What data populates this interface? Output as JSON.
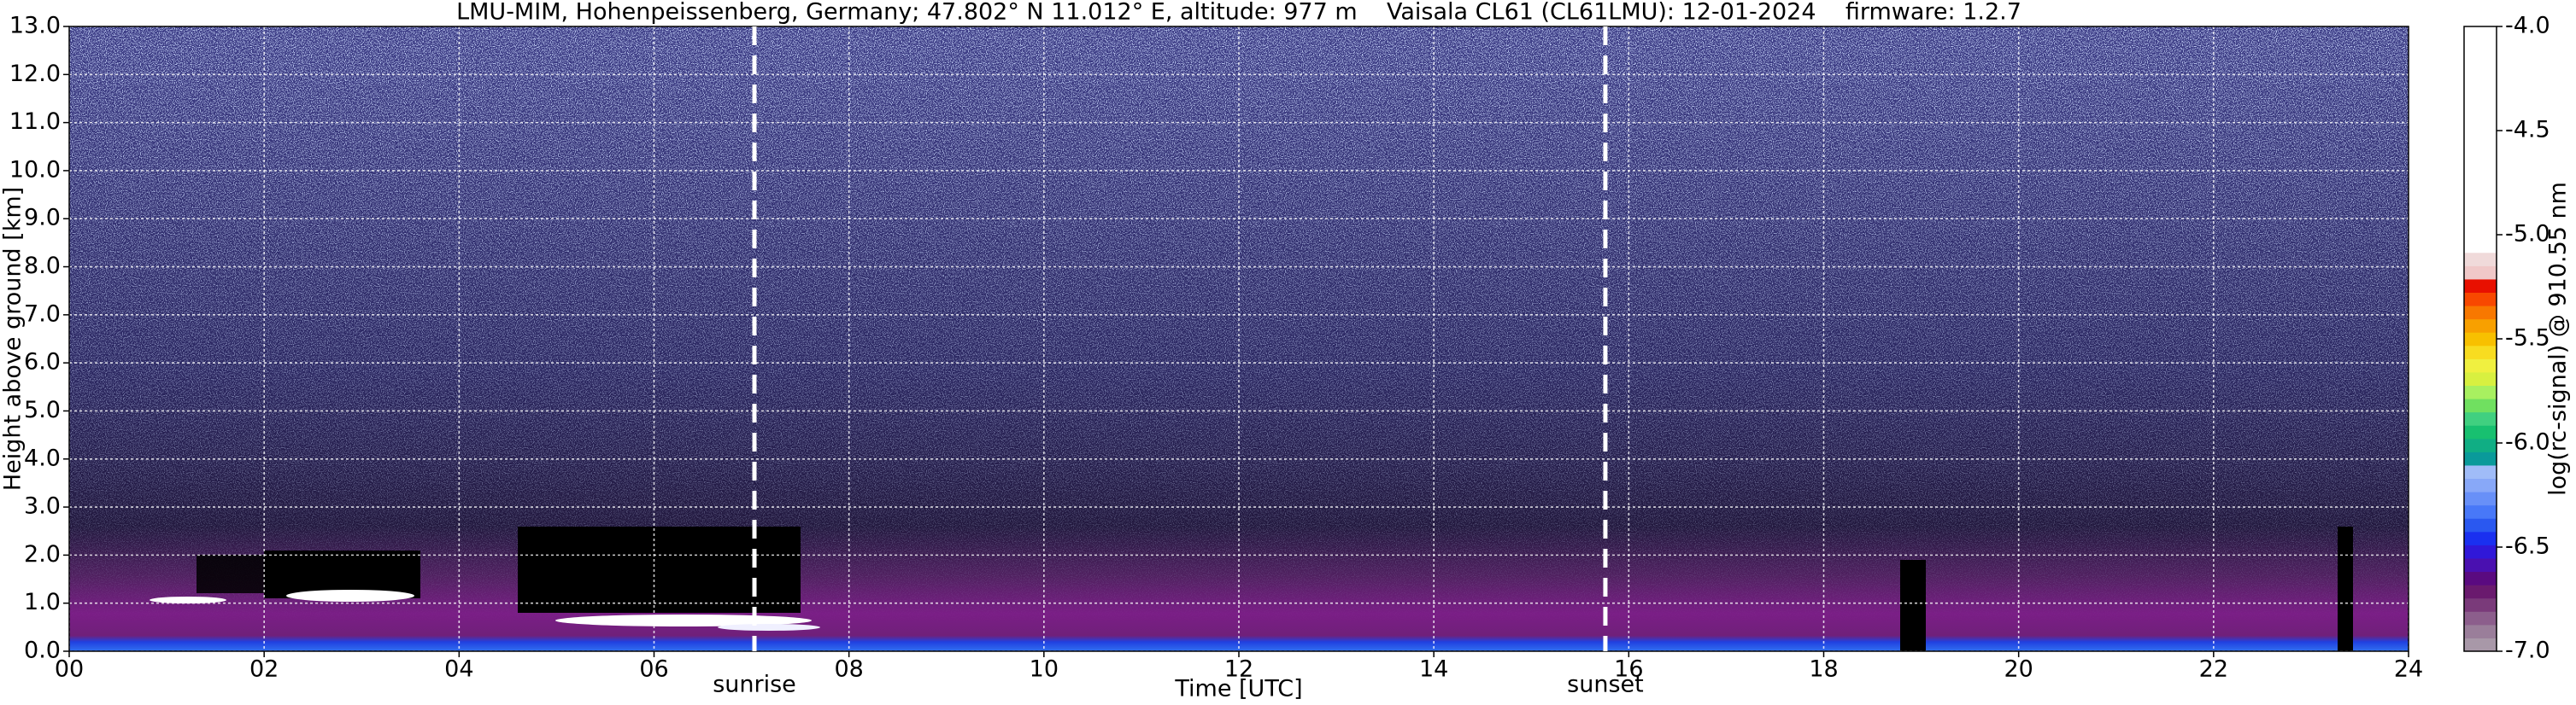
{
  "chart_data": {
    "type": "heatmap",
    "title": "LMU-MIM, Hohenpeissenberg, Germany; 47.802° N 11.012° E, altitude: 977 m    Vaisala CL61 (CL61LMU): 12-01-2024    firmware: 1.2.7",
    "x_label": "Time [UTC]",
    "y_label": "Height above ground [km]",
    "xlim": [
      0,
      24
    ],
    "xticks": [
      {
        "value": 0,
        "label": "00"
      },
      {
        "value": 2,
        "label": "02"
      },
      {
        "value": 4,
        "label": "04"
      },
      {
        "value": 6,
        "label": "06"
      },
      {
        "value": 8,
        "label": "08"
      },
      {
        "value": 10,
        "label": "10"
      },
      {
        "value": 12,
        "label": "12"
      },
      {
        "value": 14,
        "label": "14"
      },
      {
        "value": 16,
        "label": "16"
      },
      {
        "value": 18,
        "label": "18"
      },
      {
        "value": 20,
        "label": "20"
      },
      {
        "value": 22,
        "label": "22"
      },
      {
        "value": 24,
        "label": "24"
      }
    ],
    "ylim": [
      0,
      13
    ],
    "yticks": [
      {
        "value": 0,
        "label": "0.0"
      },
      {
        "value": 1,
        "label": "1.0"
      },
      {
        "value": 2,
        "label": "2.0"
      },
      {
        "value": 3,
        "label": "3.0"
      },
      {
        "value": 4,
        "label": "4.0"
      },
      {
        "value": 5,
        "label": "5.0"
      },
      {
        "value": 6,
        "label": "6.0"
      },
      {
        "value": 7,
        "label": "7.0"
      },
      {
        "value": 8,
        "label": "8.0"
      },
      {
        "value": 9,
        "label": "9.0"
      },
      {
        "value": 10,
        "label": "10.0"
      },
      {
        "value": 11,
        "label": "11.0"
      },
      {
        "value": 12,
        "label": "12.0"
      },
      {
        "value": 13,
        "label": "13.0"
      }
    ],
    "grid": true,
    "annotations": [
      {
        "text": "sunrise",
        "x": 7.03
      },
      {
        "text": "sunset",
        "x": 15.76
      }
    ],
    "colorbar": {
      "label": "log(rc-signal) @ 910.55 nm",
      "lim": [
        -7,
        -4
      ],
      "ticks": [
        {
          "value": -7,
          "label": "-7.0"
        },
        {
          "value": -6.5,
          "label": "-6.5"
        },
        {
          "value": -6,
          "label": "-6.0"
        },
        {
          "value": -5.5,
          "label": "-5.5"
        },
        {
          "value": -5,
          "label": "-5.0"
        },
        {
          "value": -4.5,
          "label": "-4.5"
        },
        {
          "value": -4,
          "label": "-4.0"
        }
      ],
      "colors": [
        "#a898a8",
        "#9a7e9a",
        "#8c5e8c",
        "#7a3a7a",
        "#6a1a6e",
        "#5a0a80",
        "#4a10b0",
        "#3018d8",
        "#1a30f0",
        "#2a58f0",
        "#4878f8",
        "#6890f8",
        "#88a8f8",
        "#a0bcf8",
        "#0a9a9a",
        "#10ae84",
        "#18c070",
        "#40d080",
        "#70e060",
        "#a8f060",
        "#d8f040",
        "#f0f040",
        "#f8dc20",
        "#f8c000",
        "#f8a000",
        "#f87800",
        "#f84800",
        "#e81000",
        "#f0c8c8",
        "#f0dada",
        "#ffffff",
        "#ffffff",
        "#ffffff",
        "#ffffff",
        "#ffffff",
        "#ffffff",
        "#ffffff",
        "#ffffff",
        "#ffffff",
        "#ffffff",
        "#ffffff",
        "#ffffff",
        "#ffffff",
        "#ffffff",
        "#ffffff",
        "#ffffff",
        "#ffffff"
      ]
    }
  }
}
